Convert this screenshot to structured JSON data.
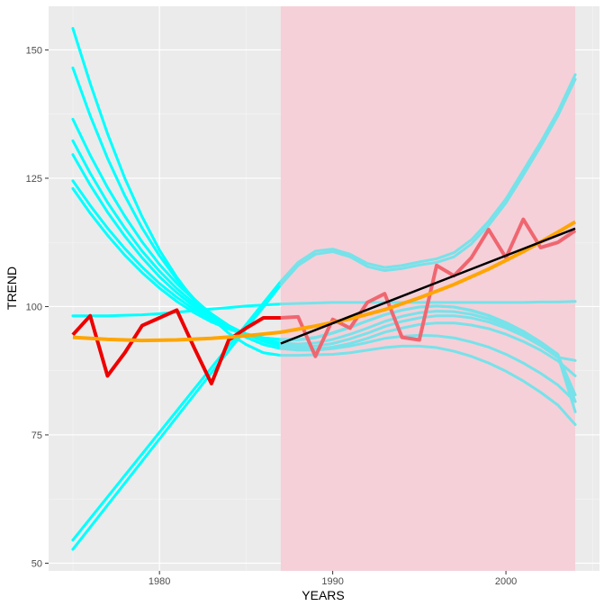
{
  "chart_data": {
    "type": "line",
    "xlabel": "YEARS",
    "ylabel": "TREND",
    "xlim": [
      1973.6,
      2005.4
    ],
    "ylim": [
      48.5,
      158.5
    ],
    "x_ticks": [
      1980,
      1990,
      2000
    ],
    "x_tick_labels": [
      "1980",
      "1990",
      "2000"
    ],
    "y_ticks": [
      50,
      75,
      100,
      125,
      150
    ],
    "y_tick_labels": [
      "50",
      "75",
      "100",
      "125",
      "150"
    ],
    "grid": true,
    "panel_color": "#ebebeb",
    "highlight_region": {
      "x": [
        1987,
        2004
      ],
      "color": "#f5d0d8"
    },
    "series": [
      {
        "role": "observed",
        "color": "#ee0000",
        "x": [
          1975,
          1976,
          1977,
          1978,
          1979,
          1980,
          1981,
          1982,
          1983,
          1984,
          1985,
          1986,
          1987
        ],
        "values": [
          94.5,
          98.2,
          86.5,
          91.0,
          96.3,
          97.8,
          99.3,
          92.0,
          85.0,
          93.5,
          95.8,
          97.8,
          97.8
        ]
      },
      {
        "role": "observed-forecast-period",
        "color": "#f06670",
        "x": [
          1987,
          1988,
          1989,
          1990,
          1991,
          1992,
          1993,
          1994,
          1995,
          1996,
          1997,
          1998,
          1999,
          2000,
          2001,
          2002,
          2003,
          2004
        ],
        "values": [
          97.8,
          98.0,
          90.3,
          97.5,
          95.8,
          100.8,
          102.5,
          94.0,
          93.5,
          108.0,
          106.0,
          109.5,
          115.0,
          109.5,
          117.0,
          111.5,
          112.5,
          114.8
        ]
      },
      {
        "role": "smooth-trend",
        "color": "#ffa500",
        "x": [
          1975,
          1977,
          1979,
          1981,
          1983,
          1985,
          1987,
          1989,
          1991,
          1993,
          1995,
          1997,
          1999,
          2001,
          2003,
          2004
        ],
        "values": [
          94.0,
          93.6,
          93.4,
          93.5,
          93.8,
          94.3,
          95.0,
          96.2,
          97.6,
          99.4,
          101.7,
          104.3,
          107.3,
          110.7,
          114.5,
          116.5
        ]
      },
      {
        "role": "linear-fit",
        "color": "#000000",
        "x": [
          1987,
          2004
        ],
        "values": [
          92.8,
          115.2
        ]
      }
    ],
    "simulated_curves": {
      "color": "#00ffff",
      "forecast_color": "#77e2ea",
      "x": [
        1975,
        1976,
        1977,
        1978,
        1979,
        1980,
        1981,
        1982,
        1983,
        1984,
        1985,
        1986,
        1987,
        1988,
        1989,
        1990,
        1991,
        1992,
        1993,
        1994,
        1995,
        1996,
        1997,
        1998,
        1999,
        2000,
        2001,
        2002,
        2003,
        2004
      ],
      "curves": [
        [
          154.2,
          143.5,
          133.7,
          125.0,
          117.5,
          111.0,
          105.7,
          101.2,
          97.7,
          94.8,
          92.6,
          91.0,
          90.5,
          90.5,
          90.6,
          90.7,
          91.0,
          91.5,
          92.0,
          92.3,
          92.3,
          92.0,
          91.3,
          90.3,
          89.0,
          87.4,
          85.5,
          83.3,
          80.8,
          77.0
        ],
        [
          146.5,
          137.2,
          128.9,
          121.6,
          115.3,
          109.9,
          105.3,
          101.5,
          98.4,
          95.9,
          94.0,
          92.6,
          91.8,
          91.5,
          91.5,
          91.8,
          92.3,
          93.0,
          93.8,
          94.2,
          94.4,
          94.3,
          93.9,
          93.1,
          92.1,
          90.7,
          89.0,
          87.0,
          84.7,
          81.5
        ],
        [
          136.5,
          129.5,
          123.2,
          117.6,
          112.6,
          108.2,
          104.5,
          101.3,
          98.6,
          96.3,
          94.6,
          93.2,
          92.3,
          91.8,
          91.7,
          92.1,
          92.8,
          93.8,
          95.0,
          95.8,
          96.5,
          96.8,
          96.8,
          96.4,
          95.7,
          94.6,
          93.2,
          91.5,
          89.4,
          86.5
        ],
        [
          132.3,
          126.0,
          120.3,
          115.3,
          110.8,
          106.9,
          103.5,
          100.6,
          98.2,
          96.2,
          94.6,
          93.4,
          92.6,
          92.2,
          92.3,
          92.8,
          93.7,
          94.8,
          96.1,
          97.1,
          97.8,
          98.2,
          98.2,
          97.8,
          97.0,
          95.8,
          94.3,
          92.4,
          90.1,
          89.5
        ],
        [
          129.6,
          123.7,
          118.4,
          113.7,
          109.5,
          105.8,
          102.7,
          100.0,
          97.8,
          96.0,
          94.6,
          93.5,
          92.9,
          92.7,
          92.9,
          93.6,
          94.6,
          95.8,
          97.1,
          98.1,
          98.8,
          99.1,
          99.0,
          98.5,
          97.6,
          96.3,
          94.7,
          92.8,
          90.5,
          82.8
        ],
        [
          124.5,
          119.7,
          115.3,
          111.3,
          107.7,
          104.5,
          101.8,
          99.4,
          97.5,
          95.9,
          94.7,
          93.9,
          93.5,
          93.5,
          93.9,
          94.8,
          95.9,
          97.2,
          98.4,
          99.3,
          99.9,
          100.1,
          99.9,
          99.3,
          98.3,
          96.9,
          95.2,
          93.1,
          90.7,
          81.5
        ],
        [
          123.0,
          118.2,
          113.9,
          110.0,
          106.6,
          103.6,
          101.0,
          98.8,
          97.0,
          95.6,
          94.6,
          93.9,
          93.6,
          93.6,
          94.0,
          94.9,
          96.0,
          97.2,
          98.4,
          99.3,
          99.9,
          100.1,
          99.9,
          99.2,
          98.2,
          96.7,
          94.9,
          92.8,
          90.4,
          79.5
        ],
        [
          98.2,
          98.2,
          98.2,
          98.3,
          98.4,
          98.6,
          98.9,
          99.2,
          99.5,
          99.8,
          100.1,
          100.3,
          100.5,
          100.6,
          100.7,
          100.8,
          100.8,
          100.8,
          100.8,
          100.8,
          100.8,
          100.8,
          100.8,
          100.8,
          100.8,
          100.8,
          100.8,
          100.9,
          100.9,
          101.0
        ],
        [
          54.5,
          58.7,
          62.9,
          67.1,
          71.3,
          75.5,
          79.7,
          83.9,
          88.1,
          92.3,
          96.5,
          100.7,
          104.9,
          108.6,
          110.8,
          111.2,
          110.2,
          108.4,
          107.6,
          108.0,
          108.7,
          109.3,
          110.5,
          113.0,
          116.6,
          121.0,
          126.5,
          132.0,
          138.0,
          145.2
        ],
        [
          52.7,
          57.0,
          61.3,
          65.6,
          69.9,
          74.2,
          78.5,
          82.8,
          87.1,
          91.4,
          95.7,
          99.9,
          104.2,
          108.0,
          110.2,
          110.7,
          109.7,
          107.8,
          107.0,
          107.4,
          108.1,
          108.6,
          109.7,
          112.2,
          115.8,
          120.2,
          125.6,
          131.2,
          137.2,
          144.3
        ]
      ]
    }
  }
}
